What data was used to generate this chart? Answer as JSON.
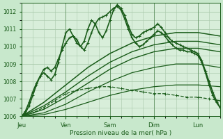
{
  "background_color": "#c8e8cc",
  "plot_bg_color": "#d8eeda",
  "grid_color": "#a8c8aa",
  "line_color": "#1a5c1a",
  "xlabel": "Pression niveau de la mer( hPa )",
  "ylim": [
    1006.0,
    1012.5
  ],
  "yticks": [
    1006,
    1007,
    1008,
    1009,
    1010,
    1011,
    1012
  ],
  "day_labels": [
    "Jeu",
    "Ven",
    "Sam",
    "Dim",
    "Lun"
  ],
  "day_positions": [
    0,
    24,
    48,
    72,
    96
  ],
  "xlim": [
    0,
    108
  ],
  "series": [
    {
      "name": "wavy_high",
      "style": "solid",
      "lw": 1.2,
      "marker": true,
      "pts": [
        [
          0,
          1006.0
        ],
        [
          2,
          1006.3
        ],
        [
          4,
          1006.8
        ],
        [
          6,
          1007.4
        ],
        [
          8,
          1007.9
        ],
        [
          10,
          1008.3
        ],
        [
          12,
          1008.5
        ],
        [
          14,
          1008.3
        ],
        [
          16,
          1008.1
        ],
        [
          18,
          1008.4
        ],
        [
          20,
          1009.1
        ],
        [
          22,
          1010.0
        ],
        [
          24,
          1010.8
        ],
        [
          26,
          1011.0
        ],
        [
          28,
          1010.6
        ],
        [
          30,
          1010.2
        ],
        [
          32,
          1010.0
        ],
        [
          34,
          1010.3
        ],
        [
          36,
          1011.0
        ],
        [
          38,
          1011.5
        ],
        [
          40,
          1011.3
        ],
        [
          42,
          1010.8
        ],
        [
          44,
          1010.5
        ],
        [
          46,
          1010.9
        ],
        [
          48,
          1011.5
        ],
        [
          50,
          1012.1
        ],
        [
          52,
          1012.4
        ],
        [
          54,
          1012.2
        ],
        [
          56,
          1011.8
        ],
        [
          58,
          1011.2
        ],
        [
          60,
          1010.7
        ],
        [
          62,
          1010.5
        ],
        [
          64,
          1010.6
        ],
        [
          66,
          1010.8
        ],
        [
          68,
          1010.9
        ],
        [
          70,
          1011.0
        ],
        [
          72,
          1011.1
        ],
        [
          74,
          1011.3
        ],
        [
          76,
          1011.1
        ],
        [
          78,
          1010.8
        ],
        [
          80,
          1010.5
        ],
        [
          82,
          1010.3
        ],
        [
          84,
          1010.2
        ],
        [
          86,
          1010.1
        ],
        [
          88,
          1010.0
        ],
        [
          90,
          1009.9
        ],
        [
          92,
          1009.8
        ],
        [
          94,
          1009.7
        ],
        [
          96,
          1009.6
        ],
        [
          98,
          1009.2
        ],
        [
          100,
          1008.6
        ],
        [
          102,
          1008.0
        ],
        [
          104,
          1007.4
        ],
        [
          106,
          1006.9
        ],
        [
          108,
          1006.5
        ]
      ]
    },
    {
      "name": "wavy_mid1",
      "style": "solid",
      "lw": 1.2,
      "marker": true,
      "pts": [
        [
          0,
          1006.0
        ],
        [
          2,
          1006.2
        ],
        [
          4,
          1006.6
        ],
        [
          6,
          1007.2
        ],
        [
          8,
          1007.8
        ],
        [
          10,
          1008.3
        ],
        [
          12,
          1008.7
        ],
        [
          14,
          1008.8
        ],
        [
          16,
          1008.6
        ],
        [
          18,
          1008.8
        ],
        [
          20,
          1009.3
        ],
        [
          22,
          1009.8
        ],
        [
          24,
          1010.2
        ],
        [
          26,
          1010.5
        ],
        [
          28,
          1010.6
        ],
        [
          30,
          1010.4
        ],
        [
          32,
          1010.0
        ],
        [
          34,
          1009.8
        ],
        [
          36,
          1010.2
        ],
        [
          38,
          1010.8
        ],
        [
          40,
          1011.3
        ],
        [
          42,
          1011.6
        ],
        [
          44,
          1011.7
        ],
        [
          46,
          1011.8
        ],
        [
          48,
          1012.0
        ],
        [
          50,
          1012.2
        ],
        [
          52,
          1012.3
        ],
        [
          54,
          1012.1
        ],
        [
          56,
          1011.6
        ],
        [
          58,
          1011.0
        ],
        [
          60,
          1010.5
        ],
        [
          62,
          1010.2
        ],
        [
          64,
          1010.0
        ],
        [
          66,
          1010.1
        ],
        [
          68,
          1010.3
        ],
        [
          70,
          1010.5
        ],
        [
          72,
          1010.7
        ],
        [
          74,
          1010.9
        ],
        [
          76,
          1010.8
        ],
        [
          78,
          1010.6
        ],
        [
          80,
          1010.3
        ],
        [
          82,
          1010.1
        ],
        [
          84,
          1009.9
        ],
        [
          86,
          1009.8
        ],
        [
          88,
          1009.8
        ],
        [
          90,
          1009.7
        ],
        [
          92,
          1009.7
        ],
        [
          94,
          1009.6
        ],
        [
          96,
          1009.5
        ],
        [
          98,
          1009.1
        ],
        [
          100,
          1008.5
        ],
        [
          102,
          1007.8
        ],
        [
          104,
          1007.2
        ],
        [
          106,
          1006.8
        ],
        [
          108,
          1006.5
        ]
      ]
    },
    {
      "name": "straight_high",
      "style": "solid",
      "lw": 1.1,
      "marker": false,
      "pts": [
        [
          0,
          1006.0
        ],
        [
          12,
          1006.8
        ],
        [
          24,
          1007.8
        ],
        [
          36,
          1008.8
        ],
        [
          48,
          1009.6
        ],
        [
          60,
          1010.2
        ],
        [
          72,
          1010.6
        ],
        [
          84,
          1010.8
        ],
        [
          96,
          1010.8
        ],
        [
          108,
          1010.6
        ]
      ]
    },
    {
      "name": "straight_mid1",
      "style": "solid",
      "lw": 1.0,
      "marker": false,
      "pts": [
        [
          0,
          1006.0
        ],
        [
          12,
          1006.6
        ],
        [
          24,
          1007.4
        ],
        [
          36,
          1008.3
        ],
        [
          48,
          1009.1
        ],
        [
          60,
          1009.7
        ],
        [
          72,
          1010.1
        ],
        [
          84,
          1010.3
        ],
        [
          96,
          1010.3
        ],
        [
          108,
          1010.1
        ]
      ]
    },
    {
      "name": "straight_mid2",
      "style": "solid",
      "lw": 1.0,
      "marker": false,
      "pts": [
        [
          0,
          1006.0
        ],
        [
          12,
          1006.4
        ],
        [
          24,
          1007.1
        ],
        [
          36,
          1007.9
        ],
        [
          48,
          1008.7
        ],
        [
          60,
          1009.3
        ],
        [
          72,
          1009.7
        ],
        [
          84,
          1009.9
        ],
        [
          96,
          1009.9
        ],
        [
          108,
          1009.7
        ]
      ]
    },
    {
      "name": "straight_low1",
      "style": "solid",
      "lw": 0.9,
      "marker": false,
      "pts": [
        [
          0,
          1006.0
        ],
        [
          12,
          1006.2
        ],
        [
          24,
          1006.7
        ],
        [
          36,
          1007.4
        ],
        [
          48,
          1008.0
        ],
        [
          60,
          1008.5
        ],
        [
          72,
          1008.8
        ],
        [
          84,
          1009.0
        ],
        [
          96,
          1009.0
        ],
        [
          108,
          1008.8
        ]
      ]
    },
    {
      "name": "dashed_low",
      "style": "dashed",
      "lw": 0.9,
      "marker": true,
      "pts": [
        [
          0,
          1006.0
        ],
        [
          6,
          1006.2
        ],
        [
          12,
          1006.5
        ],
        [
          18,
          1006.9
        ],
        [
          24,
          1007.3
        ],
        [
          30,
          1007.5
        ],
        [
          36,
          1007.6
        ],
        [
          42,
          1007.7
        ],
        [
          48,
          1007.7
        ],
        [
          54,
          1007.6
        ],
        [
          60,
          1007.5
        ],
        [
          66,
          1007.4
        ],
        [
          72,
          1007.3
        ],
        [
          78,
          1007.3
        ],
        [
          84,
          1007.2
        ],
        [
          90,
          1007.1
        ],
        [
          96,
          1007.1
        ],
        [
          102,
          1007.0
        ],
        [
          108,
          1006.9
        ]
      ]
    },
    {
      "name": "straight_vlow",
      "style": "solid",
      "lw": 0.9,
      "marker": false,
      "pts": [
        [
          0,
          1006.0
        ],
        [
          12,
          1006.1
        ],
        [
          24,
          1006.4
        ],
        [
          36,
          1006.8
        ],
        [
          48,
          1007.2
        ],
        [
          60,
          1007.5
        ],
        [
          72,
          1007.7
        ],
        [
          84,
          1007.8
        ],
        [
          96,
          1007.8
        ],
        [
          108,
          1007.7
        ]
      ]
    }
  ],
  "figsize": [
    3.2,
    2.0
  ],
  "dpi": 100
}
